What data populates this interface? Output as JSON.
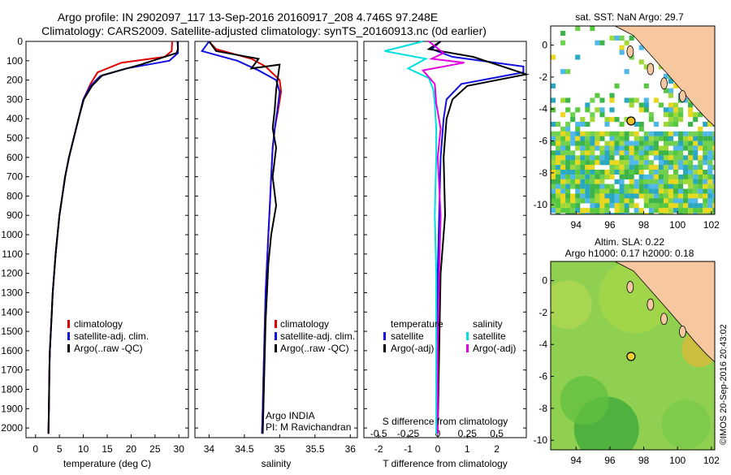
{
  "header": {
    "line1": "Argo profile: IN 2902097_117 13-Sep-2016 20160917_208 4.746S 97.248E",
    "line2": "Climatology: CARS2009. Satellite-adjusted climatology: synTS_20160913.nc (0d earlier)"
  },
  "credit": "©IMOS 20-Sep-2016 20:43:02",
  "colors": {
    "climatology": "#e00000",
    "satellite": "#1010e0",
    "argo": "#000000",
    "sat_diff_s": "#00e0e0",
    "argo_diff_s": "#e000e0"
  },
  "depth_ticks": [
    "0",
    "100",
    "200",
    "300",
    "400",
    "500",
    "600",
    "700",
    "800",
    "900",
    "1000",
    "1100",
    "1200",
    "1300",
    "1400",
    "1500",
    "1600",
    "1700",
    "1800",
    "1900",
    "2000"
  ],
  "temperature": {
    "xlabel": "temperature (deg C)",
    "xlim": [
      -2,
      32
    ],
    "ticks": [
      "0",
      "5",
      "10",
      "15",
      "20",
      "25",
      "30"
    ],
    "legend": [
      "climatology",
      "satellite-adj. clim.",
      "Argo(..raw -QC)"
    ]
  },
  "salinity": {
    "xlabel": "salinity",
    "xlim": [
      33.8,
      36.1
    ],
    "ticks": [
      "34",
      "34.5",
      "35",
      "35.5",
      "36"
    ],
    "legend": [
      "climatology",
      "satellite-adj. clim.",
      "Argo(..raw -QC)"
    ],
    "annotation1": "Argo INDIA",
    "annotation2": "PI: M Ravichandran"
  },
  "difference": {
    "xlabel": "T difference from climatology",
    "s_label": "S difference from climatology",
    "t_ticks": [
      "-2",
      "-1",
      "0",
      "1",
      "2"
    ],
    "s_ticks": [
      "-0.5",
      "-0.25",
      "0",
      "0.25",
      "0.5"
    ],
    "legend_temp_title": "temperature",
    "legend_sal_title": "salinity",
    "legend_temp": [
      "satellite",
      "Argo(-adj)"
    ],
    "legend_sal": [
      "satellite",
      "Argo(-adj)"
    ]
  },
  "map_sst": {
    "title": "sat. SST: NaN Argo: 29.7",
    "xticks": [
      "94",
      "96",
      "98",
      "100",
      "102"
    ],
    "yticks": [
      "0",
      "-2",
      "-4",
      "-6",
      "-8",
      "-10"
    ],
    "float_lon": 97.25,
    "float_lat": -4.75
  },
  "map_sla": {
    "title1": "Altim. SLA: 0.22",
    "title2": "Argo h1000: 0.17 h2000: 0.18",
    "xticks": [
      "94",
      "96",
      "98",
      "100",
      "102"
    ],
    "yticks": [
      "0",
      "-2",
      "-4",
      "-6",
      "-8",
      "-10"
    ],
    "float_lon": 97.25,
    "float_lat": -4.75
  },
  "chart_data": [
    {
      "type": "line",
      "title": "",
      "xlabel": "temperature (deg C)",
      "ylabel": "",
      "xlim": [
        -2,
        32
      ],
      "ylim": [
        2050,
        0
      ],
      "series": [
        {
          "name": "climatology",
          "x": [
            28.6,
            28.5,
            27.0,
            18.0,
            13.0,
            11.5,
            10.0,
            9.0,
            8.0,
            7.0,
            6.2,
            5.6,
            5.0,
            4.6,
            4.2,
            3.9,
            3.6,
            3.4,
            3.2,
            3.0,
            2.9,
            2.8,
            2.7
          ],
          "y": [
            0,
            50,
            80,
            110,
            160,
            220,
            300,
            400,
            500,
            600,
            700,
            800,
            900,
            1000,
            1100,
            1200,
            1300,
            1400,
            1500,
            1600,
            1700,
            1900,
            2030
          ]
        },
        {
          "name": "satellite-adj. clim.",
          "x": [
            29.8,
            29.8,
            28.0,
            19.0,
            13.5,
            11.5,
            10.0,
            9.0,
            8.0,
            7.0,
            6.2,
            5.6,
            5.0,
            4.6,
            4.2,
            3.9,
            3.6,
            3.4,
            3.2,
            3.0,
            2.9,
            2.8,
            2.7
          ],
          "y": [
            0,
            60,
            100,
            140,
            180,
            230,
            300,
            400,
            500,
            600,
            700,
            800,
            900,
            1000,
            1100,
            1200,
            1300,
            1400,
            1500,
            1600,
            1700,
            1900,
            2030
          ]
        },
        {
          "name": "Argo(..raw -QC)",
          "x": [
            29.7,
            29.8,
            29.5,
            22.0,
            14.0,
            11.8,
            10.1,
            9.0,
            8.0,
            7.0,
            6.2,
            5.6,
            5.0,
            4.6,
            4.2,
            3.9,
            3.6,
            3.4,
            3.2,
            3.0,
            2.9,
            2.8,
            2.7
          ],
          "y": [
            0,
            40,
            60,
            120,
            175,
            230,
            300,
            400,
            500,
            600,
            700,
            800,
            900,
            1000,
            1100,
            1200,
            1300,
            1400,
            1500,
            1600,
            1700,
            1900,
            2030
          ]
        }
      ]
    },
    {
      "type": "line",
      "title": "",
      "xlabel": "salinity",
      "ylabel": "",
      "xlim": [
        33.8,
        36.1
      ],
      "ylim": [
        2050,
        0
      ],
      "series": [
        {
          "name": "climatology",
          "x": [
            34.0,
            34.1,
            34.6,
            34.8,
            35.0,
            35.02,
            34.98,
            34.93,
            34.9,
            34.88,
            34.86,
            34.84,
            34.82,
            34.8,
            34.79,
            34.78,
            34.77,
            34.76,
            34.75
          ],
          "y": [
            0,
            40,
            90,
            130,
            200,
            260,
            350,
            450,
            550,
            700,
            850,
            1000,
            1150,
            1300,
            1450,
            1600,
            1750,
            1900,
            2030
          ]
        },
        {
          "name": "satellite-adj. clim.",
          "x": [
            34.0,
            33.9,
            34.4,
            34.7,
            34.95,
            35.0,
            34.97,
            34.93,
            34.9,
            34.88,
            34.86,
            34.84,
            34.82,
            34.8,
            34.79,
            34.78,
            34.77,
            34.76,
            34.75
          ],
          "y": [
            0,
            50,
            100,
            150,
            200,
            260,
            350,
            450,
            550,
            700,
            850,
            1000,
            1150,
            1300,
            1450,
            1600,
            1750,
            1900,
            2030
          ]
        },
        {
          "name": "Argo(..raw -QC)",
          "x": [
            34.0,
            34.1,
            34.7,
            34.6,
            35.0,
            34.95,
            34.93,
            34.9,
            34.95,
            34.9,
            34.95,
            34.88,
            34.84,
            34.82,
            34.8,
            34.79,
            34.78,
            34.77,
            34.76
          ],
          "y": [
            0,
            50,
            90,
            140,
            120,
            250,
            350,
            450,
            550,
            700,
            850,
            1000,
            1150,
            1300,
            1450,
            1600,
            1750,
            1900,
            2030
          ]
        }
      ]
    },
    {
      "type": "line",
      "title": "",
      "xlabel": "T difference from climatology",
      "ylabel": "",
      "xlim": [
        -2.5,
        3.0
      ],
      "ylim": [
        2050,
        0
      ],
      "series": [
        {
          "name": "temperature satellite",
          "x": [
            0.1,
            -0.2,
            0.5,
            2.9,
            2.9,
            0.8,
            0.3,
            0.2,
            0.1,
            0.05,
            0.0,
            0.0,
            0.0
          ],
          "y": [
            0,
            40,
            80,
            130,
            160,
            220,
            300,
            400,
            600,
            900,
            1200,
            1600,
            2030
          ]
        },
        {
          "name": "temperature Argo(-adj)",
          "x": [
            0.1,
            -0.3,
            1.2,
            2.0,
            3.0,
            1.0,
            0.5,
            0.3,
            0.2,
            0.25,
            0.1,
            0.05,
            0.0
          ],
          "y": [
            0,
            40,
            80,
            120,
            170,
            230,
            300,
            400,
            600,
            900,
            1200,
            1600,
            2030
          ]
        },
        {
          "name": "salinity satellite",
          "x": [
            -0.5,
            -1.8,
            -0.4,
            -1.0,
            -0.3,
            -0.15,
            -0.1,
            -0.05,
            -0.05,
            -0.1,
            -0.05,
            -0.05,
            -0.05
          ],
          "y": [
            0,
            50,
            90,
            140,
            190,
            250,
            320,
            450,
            600,
            900,
            1200,
            1600,
            2030
          ]
        },
        {
          "name": "salinity Argo(-adj)",
          "x": [
            -0.3,
            0.2,
            -0.2,
            0.9,
            -0.5,
            -0.1,
            -0.05,
            0.1,
            0.0,
            0.1,
            0.05,
            0.0,
            0.0
          ],
          "y": [
            0,
            60,
            90,
            110,
            150,
            220,
            320,
            450,
            600,
            900,
            1200,
            1600,
            2030
          ]
        }
      ]
    }
  ]
}
